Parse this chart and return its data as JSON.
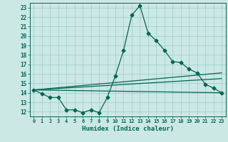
{
  "xlabel": "Humidex (Indice chaleur)",
  "background_color": "#cce8e4",
  "grid_color": "#99cccc",
  "line_color": "#006655",
  "xlim": [
    -0.5,
    23.5
  ],
  "ylim": [
    11.5,
    23.5
  ],
  "xticks": [
    0,
    1,
    2,
    3,
    4,
    5,
    6,
    7,
    8,
    9,
    10,
    11,
    12,
    13,
    14,
    15,
    16,
    17,
    18,
    19,
    20,
    21,
    22,
    23
  ],
  "yticks": [
    12,
    13,
    14,
    15,
    16,
    17,
    18,
    19,
    20,
    21,
    22,
    23
  ],
  "line1_x": [
    0,
    1,
    2,
    3,
    4,
    5,
    6,
    7,
    8,
    9,
    10,
    11,
    12,
    13,
    14,
    15,
    16,
    17,
    18,
    19,
    20,
    21,
    22,
    23
  ],
  "line1_y": [
    14.3,
    13.9,
    13.5,
    13.5,
    12.2,
    12.2,
    11.9,
    12.2,
    11.9,
    13.5,
    15.8,
    18.5,
    22.2,
    23.2,
    20.3,
    19.5,
    18.5,
    17.3,
    17.2,
    16.5,
    16.1,
    14.9,
    14.5,
    14.0
  ],
  "line2_x": [
    0,
    23
  ],
  "line2_y": [
    14.3,
    16.1
  ],
  "line3_x": [
    0,
    23
  ],
  "line3_y": [
    14.3,
    15.5
  ],
  "line4_x": [
    0,
    23
  ],
  "line4_y": [
    14.3,
    14.0
  ]
}
